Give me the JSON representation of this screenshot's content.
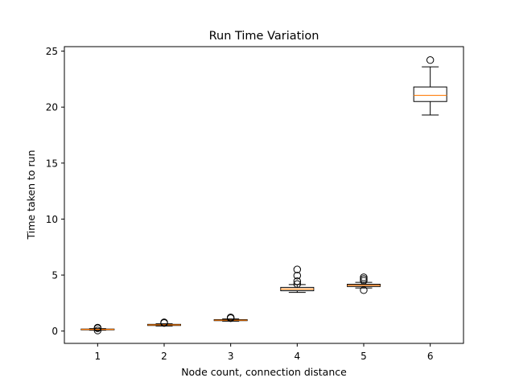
{
  "chart_data": {
    "type": "box",
    "title": "Run Time Variation",
    "xlabel": "Node count, connection distance",
    "ylabel": "Time taken to run",
    "ylim": [
      -1.1,
      25.4
    ],
    "yticks": [
      0,
      5,
      10,
      15,
      20,
      25
    ],
    "categories": [
      "1",
      "2",
      "3",
      "4",
      "5",
      "6"
    ],
    "grid": false,
    "legend": "none",
    "colors": {
      "box": "#000000",
      "median": "#ff7f0e",
      "background": "#ffffff"
    },
    "boxes": [
      {
        "category": "1",
        "whisker_low": 0.08,
        "q1": 0.12,
        "median": 0.15,
        "q3": 0.18,
        "whisker_high": 0.22,
        "outliers": [
          0.05,
          0.25,
          0.3
        ]
      },
      {
        "category": "2",
        "whisker_low": 0.45,
        "q1": 0.5,
        "median": 0.55,
        "q3": 0.6,
        "whisker_high": 0.65,
        "outliers": [
          0.72,
          0.78
        ]
      },
      {
        "category": "3",
        "whisker_low": 0.88,
        "q1": 0.93,
        "median": 0.97,
        "q3": 1.02,
        "whisker_high": 1.08,
        "outliers": [
          1.15,
          1.22
        ]
      },
      {
        "category": "4",
        "whisker_low": 3.45,
        "q1": 3.6,
        "median": 3.75,
        "q3": 3.9,
        "whisker_high": 4.15,
        "outliers": [
          4.2,
          4.45,
          4.95,
          5.5
        ]
      },
      {
        "category": "5",
        "whisker_low": 3.85,
        "q1": 3.98,
        "median": 4.08,
        "q3": 4.18,
        "whisker_high": 4.35,
        "outliers": [
          3.65,
          4.5,
          4.65,
          4.8
        ]
      },
      {
        "category": "6",
        "whisker_low": 19.3,
        "q1": 20.5,
        "median": 21.05,
        "q3": 21.8,
        "whisker_high": 23.6,
        "outliers": [
          24.2
        ]
      }
    ]
  }
}
